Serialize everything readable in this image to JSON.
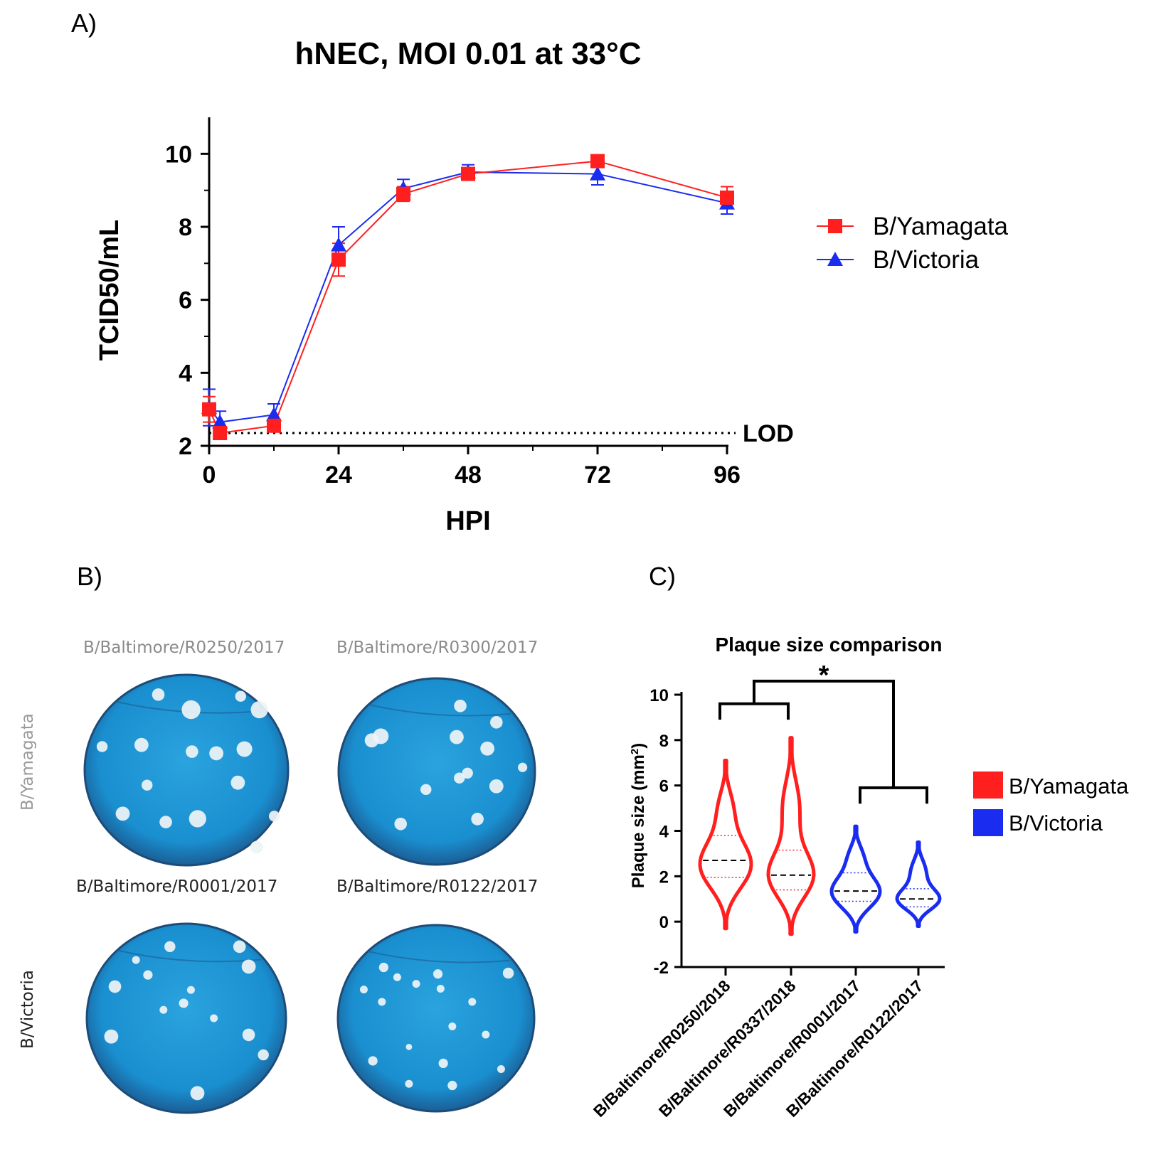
{
  "panel_labels": {
    "a": "A)",
    "b": "B)",
    "c": "C)"
  },
  "colors": {
    "yamagata": "#ff1f1f",
    "victoria": "#1a2cf0",
    "plate": "#1a8fd0"
  },
  "chart_data": [
    {
      "type": "line",
      "title": "hNEC, MOI 0.01 at 33°C",
      "xlabel": "HPI",
      "ylabel": "TCID50/mL",
      "xticks": [
        "0",
        "24",
        "48",
        "72",
        "96"
      ],
      "yticks": [
        "2",
        "4",
        "6",
        "8",
        "10"
      ],
      "xlim": [
        0,
        96
      ],
      "ylim": [
        2,
        11
      ],
      "lod": {
        "value": 2.35,
        "label": "LOD"
      },
      "legend_position": "right",
      "series": [
        {
          "name": "B/Yamagata",
          "marker": "square",
          "x": [
            0,
            2,
            12,
            24,
            36,
            48,
            72,
            96
          ],
          "y": [
            3.0,
            2.35,
            2.55,
            7.1,
            8.9,
            9.45,
            9.8,
            8.8
          ],
          "err": [
            0.35,
            0.1,
            0.15,
            0.45,
            0.2,
            0.15,
            0.15,
            0.3
          ]
        },
        {
          "name": "B/Victoria",
          "marker": "triangle",
          "x": [
            0,
            2,
            12,
            24,
            36,
            48,
            72,
            96
          ],
          "y": [
            3.05,
            2.65,
            2.85,
            7.5,
            9.05,
            9.5,
            9.45,
            8.65
          ],
          "err": [
            0.5,
            0.3,
            0.3,
            0.5,
            0.25,
            0.2,
            0.3,
            0.3
          ]
        }
      ]
    },
    {
      "type": "violin",
      "title": "Plaque size comparison",
      "ylabel": "Plaque size (mm",
      "ylabel_sup": "2",
      "ylabel_close": ")",
      "yticks": [
        "-2",
        "0",
        "2",
        "4",
        "6",
        "8",
        "10"
      ],
      "ylim": [
        -2,
        10
      ],
      "significance": "*",
      "categories": [
        "B/Baltimore/R0250/2018",
        "B/Baltimore/R0337/2018",
        "B/Baltimore/R0001/2017",
        "B/Baltimore/R0122/2017"
      ],
      "groups": [
        "yamagata",
        "yamagata",
        "victoria",
        "victoria"
      ],
      "median": [
        2.7,
        2.05,
        1.35,
        1.0
      ],
      "q1": [
        1.95,
        1.4,
        0.9,
        0.65
      ],
      "q3": [
        3.8,
        3.15,
        2.15,
        1.45
      ],
      "min": [
        -0.3,
        -0.55,
        -0.45,
        -0.2
      ],
      "max": [
        7.1,
        8.1,
        4.2,
        3.5
      ],
      "legend": [
        "B/Yamagata",
        "B/Victoria"
      ]
    }
  ],
  "plates": {
    "row_labels": [
      "B/Yamagata",
      "B/Victoria"
    ],
    "titles": [
      "B/Baltimore/R0250/2017",
      "B/Baltimore/R0300/2017",
      "B/Baltimore/R0001/2017",
      "B/Baltimore/R0122/2017"
    ]
  }
}
